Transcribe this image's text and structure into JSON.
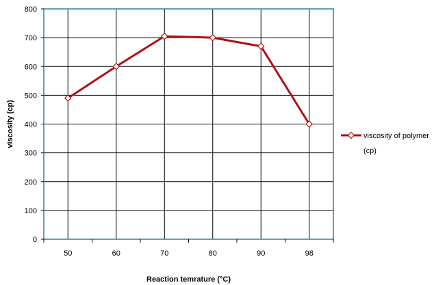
{
  "chart_data": {
    "type": "line",
    "title": "",
    "xlabel": "Reaction temrature (°C)",
    "ylabel": "viscosity (cp)",
    "categories": [
      "50",
      "60",
      "70",
      "80",
      "90",
      "98"
    ],
    "series": [
      {
        "name": "viscosity of polymer (cp)",
        "name_lines": [
          "viscosity of polymer",
          "(cp)"
        ],
        "values": [
          490,
          600,
          705,
          700,
          670,
          400
        ]
      }
    ],
    "ylim": [
      0,
      800
    ],
    "yticks": [
      0,
      100,
      200,
      300,
      400,
      500,
      600,
      700,
      800
    ],
    "grid": "horizontal and vertical",
    "legend": "right",
    "colors": {
      "line": "#b01010",
      "marker_fill": "#ffffff",
      "plot_border": "#2e7fa0",
      "grid": "#000000"
    }
  }
}
